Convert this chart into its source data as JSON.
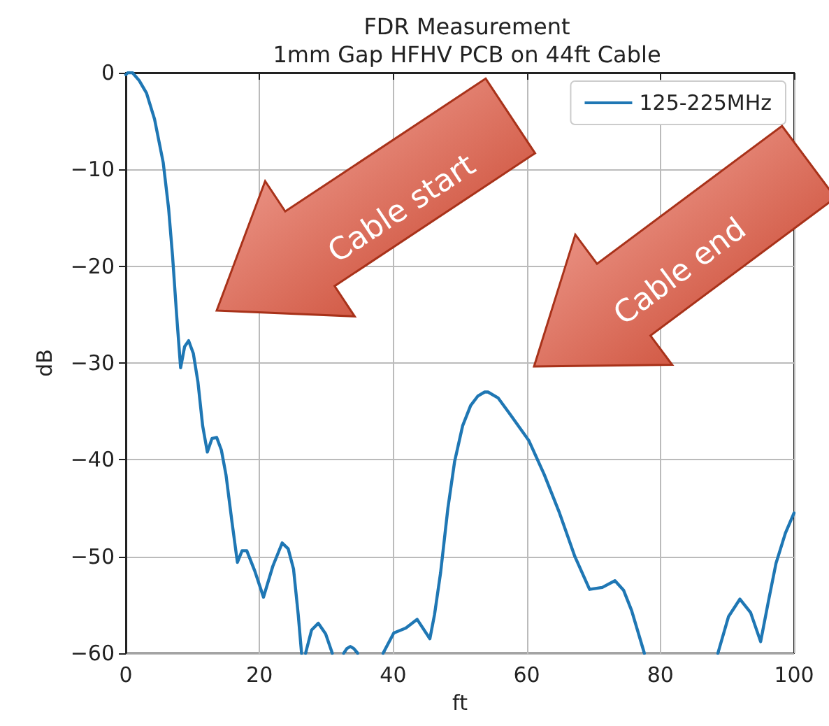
{
  "chart_data": {
    "type": "line",
    "title": "FDR Measurement\n1mm Gap HFHV PCB on 44ft Cable",
    "xlabel": "ft",
    "ylabel": "dB",
    "x": [
      0,
      0.3,
      1,
      2,
      3.1,
      4.3,
      5.6,
      6.4,
      7,
      7.6,
      8.2,
      8.8,
      9.4,
      10.1,
      10.8,
      11.5,
      12.2,
      12.9,
      13.6,
      14.3,
      15,
      15.9,
      16.7,
      17.4,
      18.1,
      19.3,
      20.6,
      22,
      23.4,
      24.3,
      25.1,
      25.8,
      26.3,
      26.6,
      26.9,
      27.8,
      28.8,
      29.9,
      30.9,
      31.8,
      32.6,
      33.1,
      33.6,
      34.1,
      34.7,
      36.6,
      38.5,
      40.1,
      41.9,
      43.6,
      45.5,
      46.2,
      47.1,
      48.2,
      49.2,
      50.4,
      51.6,
      52.7,
      53.7,
      54.2,
      55.7,
      57.5,
      60.3,
      62.6,
      64.9,
      67.2,
      69.4,
      71.3,
      73.2,
      74.5,
      75.7,
      77.6,
      83,
      88.6,
      90.2,
      91.9,
      93.5,
      95,
      96.2,
      97.3,
      98.7,
      100
    ],
    "series": [
      {
        "name": "125-225MHz",
        "color": "#1f77b4",
        "values": [
          -0.2,
          0,
          0,
          -0.8,
          -2.1,
          -4.8,
          -9.3,
          -14,
          -19,
          -25,
          -30.5,
          -28.3,
          -27.7,
          -29,
          -32,
          -36.5,
          -39.2,
          -37.8,
          -37.7,
          -39,
          -41.6,
          -46.5,
          -50.6,
          -49.4,
          -49.4,
          -51.5,
          -54.2,
          -51,
          -48.6,
          -49.2,
          -51.3,
          -56,
          -60,
          null,
          -60,
          -57.6,
          -56.9,
          -58,
          -60,
          null,
          -60,
          -59.5,
          -59.3,
          -59.5,
          -60,
          null,
          -60,
          -57.9,
          -57.4,
          -56.5,
          -58.5,
          -56,
          -51.7,
          -45,
          -40.2,
          -36.5,
          -34.4,
          -33.4,
          -33,
          -33,
          -33.6,
          -35.3,
          -38,
          -41.5,
          -45.5,
          -50,
          -53.4,
          -53.2,
          -52.5,
          -53.5,
          -55.6,
          -60,
          null,
          -60,
          -56.2,
          -54.4,
          -55.8,
          -58.8,
          -54.5,
          -50.7,
          -47.6,
          -45.5
        ]
      }
    ],
    "xlim": [
      0,
      100
    ],
    "xticks": [
      0,
      20,
      40,
      60,
      80,
      100
    ],
    "ylim": [
      -60,
      0
    ],
    "yticks": [
      -60,
      -50,
      -40,
      -30,
      -20,
      -10,
      0
    ],
    "grid": true,
    "legend": "top right",
    "line_style": "solid",
    "marker": "none",
    "annotations": [
      "Cable start",
      "Cable end"
    ]
  }
}
